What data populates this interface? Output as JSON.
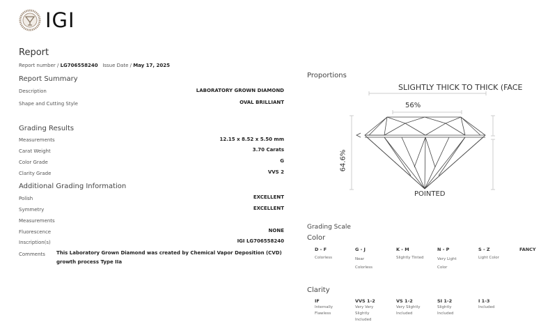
{
  "logo": {
    "text": "IGI",
    "color": "#9a8a78"
  },
  "report": {
    "title": "Report",
    "number_label": "Report number /",
    "number": "LG706558240",
    "date_label": "Issue Date /",
    "date": "May 17, 2025"
  },
  "summary": {
    "title": "Report Summary",
    "rows": [
      {
        "label": "Description",
        "value": "LABORATORY GROWN DIAMOND"
      },
      {
        "label": "Shape and Cutting Style",
        "value": "OVAL BRILLIANT"
      }
    ]
  },
  "grading": {
    "title": "Grading Results",
    "rows": [
      {
        "label": "Measurements",
        "value": "12.15 x 8.52 x 5.50 mm"
      },
      {
        "label": "Carat Weight",
        "value": "3.70 Carats"
      },
      {
        "label": "Color Grade",
        "value": "G"
      },
      {
        "label": "Clarity Grade",
        "value": "VVS 2"
      }
    ]
  },
  "additional": {
    "title": "Additional Grading Information",
    "rows": [
      {
        "label": "Polish",
        "value": "EXCELLENT"
      },
      {
        "label": "Symmetry",
        "value": "EXCELLENT"
      },
      {
        "label": "Measurements",
        "value": ""
      },
      {
        "label": "Fluorescence",
        "value": "NONE"
      },
      {
        "label": "Inscription(s)",
        "value": "IGI LG706558240"
      }
    ],
    "comments_label": "Comments",
    "comments": "This Laboratory Grown Diamond was created by Chemical Vapor Deposition (CVD) growth process Type IIa"
  },
  "proportions": {
    "title": "Proportions",
    "girdle": "SLIGHTLY THICK TO THICK (FACE",
    "table": "56%",
    "depth": "64.6%",
    "culet": "POINTED"
  },
  "scale": {
    "title": "Grading Scale",
    "color_title": "Color",
    "color": [
      {
        "grade": "D - F",
        "desc": "Colorless"
      },
      {
        "grade": "G - J",
        "desc": "Near Colorless"
      },
      {
        "grade": "K - M",
        "desc": "Slightly Tinted"
      },
      {
        "grade": "N - P",
        "desc": "Very Light Color"
      },
      {
        "grade": "S - Z",
        "desc": "Light Color"
      },
      {
        "grade": "FANCY",
        "desc": ""
      }
    ],
    "clarity_title": "Clarity",
    "clarity": [
      {
        "grade": "IF",
        "desc": "Internally Flawless"
      },
      {
        "grade": "VVS 1-2",
        "desc": "Very Very Slightly Included"
      },
      {
        "grade": "VS 1-2",
        "desc": "Very Slightly Included"
      },
      {
        "grade": "SI 1-2",
        "desc": "Slightly Included"
      },
      {
        "grade": "I 1-3",
        "desc": "Included"
      }
    ]
  }
}
